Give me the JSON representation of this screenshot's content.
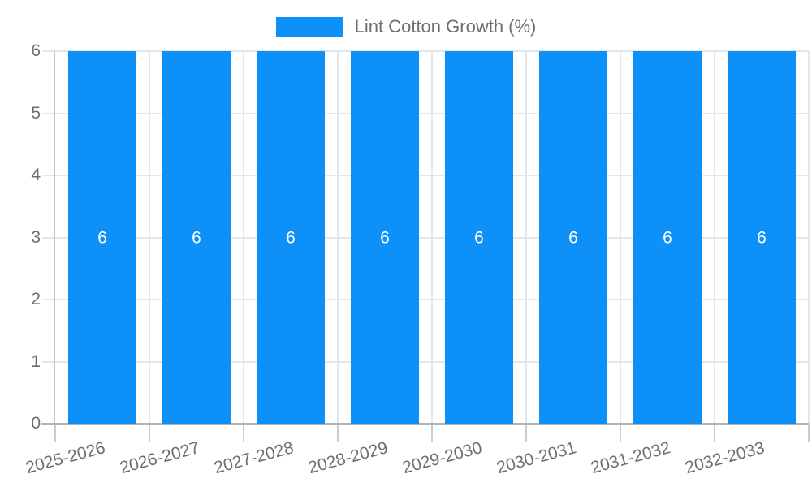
{
  "legend": {
    "label": "Lint Cotton Growth (%)"
  },
  "chart_data": {
    "type": "bar",
    "title": "",
    "xlabel": "",
    "ylabel": "",
    "categories": [
      "2025-2026",
      "2026-2027",
      "2027-2028",
      "2028-2029",
      "2029-2030",
      "2030-2031",
      "2031-2032",
      "2032-2033"
    ],
    "series": [
      {
        "name": "Lint Cotton Growth (%)",
        "values": [
          6,
          6,
          6,
          6,
          6,
          6,
          6,
          6
        ]
      }
    ],
    "bar_value_labels": [
      "6",
      "6",
      "6",
      "6",
      "6",
      "6",
      "6",
      "6"
    ],
    "ylim": [
      0,
      6
    ],
    "yticks": [
      0,
      1,
      2,
      3,
      4,
      5,
      6
    ],
    "grid": true,
    "legend_position": "top-center",
    "x_label_rotation_deg": -15,
    "colors": {
      "bar": "#0e90f9",
      "bar_label": "#ffffff",
      "axis_text": "#6e6e6e",
      "gridline": "#e6e6e6",
      "axis_line": "#b3b3b3",
      "y_axis_line": "#c6c6c6",
      "tick": "#cdcdcd",
      "background": "#ffffff"
    }
  }
}
